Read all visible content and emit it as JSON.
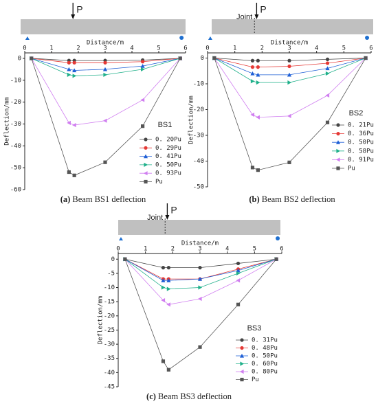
{
  "chart_data": [
    {
      "type": "line",
      "label": "(a)",
      "title": "Beam BS1 deflection",
      "load_label": "P",
      "xlabel": "Distance/m",
      "ylabel": "Deflection/mm",
      "legend_title": "BS1",
      "x": [
        0.25,
        1.65,
        1.85,
        3.0,
        4.4,
        5.8
      ],
      "xlim": [
        0,
        6
      ],
      "xticks": [
        0,
        1,
        2,
        3,
        4,
        5,
        6
      ],
      "ylim": [
        -60,
        2.5
      ],
      "yticks": [
        0,
        -10,
        -20,
        -30,
        -40,
        -50,
        -60
      ],
      "series": [
        {
          "name": "0. 20Pu",
          "color": "#444444",
          "marker": "circle",
          "values": [
            0,
            -1,
            -1,
            -1,
            -0.8,
            0
          ]
        },
        {
          "name": "0. 29Pu",
          "color": "#e53935",
          "marker": "circle",
          "values": [
            0,
            -2,
            -2,
            -2,
            -1.5,
            0
          ]
        },
        {
          "name": "0. 41Pu",
          "color": "#1e5fd6",
          "marker": "triangle",
          "values": [
            0,
            -5,
            -5.5,
            -5,
            -3.5,
            0
          ]
        },
        {
          "name": "0. 50Pu",
          "color": "#1fb08a",
          "marker": "triangle-right",
          "values": [
            0,
            -7.5,
            -8,
            -7.5,
            -5,
            0
          ]
        },
        {
          "name": "0. 93Pu",
          "color": "#d07ef0",
          "marker": "triangle-left",
          "values": [
            0,
            -29.5,
            -30.5,
            -28.5,
            -19,
            0
          ]
        },
        {
          "name": "Pu",
          "color": "#555555",
          "marker": "square",
          "values": [
            0,
            -52,
            -53.5,
            -47.5,
            -31,
            0
          ]
        }
      ]
    },
    {
      "type": "line",
      "label": "(b)",
      "title": "Beam BS2 deflection",
      "load_label": "P",
      "joint_label": "Joint",
      "xlabel": "Distance/m",
      "ylabel": "Deflection/mm",
      "legend_title": "BS2",
      "x": [
        0.25,
        1.65,
        1.85,
        3.0,
        4.4,
        5.8
      ],
      "xlim": [
        0,
        6
      ],
      "xticks": [
        0,
        1,
        2,
        3,
        4,
        5,
        6
      ],
      "ylim": [
        -50,
        2
      ],
      "yticks": [
        0,
        -10,
        -20,
        -30,
        -40,
        -50
      ],
      "series": [
        {
          "name": "0. 21Pu",
          "color": "#444444",
          "marker": "circle",
          "values": [
            0,
            -1,
            -1,
            -1,
            -0.5,
            0
          ]
        },
        {
          "name": "0. 36Pu",
          "color": "#e53935",
          "marker": "circle",
          "values": [
            0,
            -3.5,
            -3.5,
            -3.2,
            -2,
            0
          ]
        },
        {
          "name": "0. 50Pu",
          "color": "#1e5fd6",
          "marker": "triangle",
          "values": [
            0,
            -6,
            -6.5,
            -6.5,
            -4,
            0
          ]
        },
        {
          "name": "0. 58Pu",
          "color": "#1fb08a",
          "marker": "triangle-right",
          "values": [
            0,
            -9,
            -9.5,
            -9.5,
            -6,
            0
          ]
        },
        {
          "name": "0. 91Pu",
          "color": "#d07ef0",
          "marker": "triangle-left",
          "values": [
            0,
            -22,
            -23,
            -22.5,
            -14.5,
            0
          ]
        },
        {
          "name": "Pu",
          "color": "#555555",
          "marker": "square",
          "values": [
            0,
            -42.5,
            -43.5,
            -40.5,
            -25,
            0
          ]
        }
      ]
    },
    {
      "type": "line",
      "label": "(c)",
      "title": "Beam BS3 deflection",
      "load_label": "P",
      "joint_label": "Joint",
      "xlabel": "Distance/m",
      "ylabel": "Deflection/mm",
      "legend_title": "BS3",
      "x": [
        0.25,
        1.65,
        1.85,
        3.0,
        4.4,
        5.8
      ],
      "xlim": [
        0,
        6
      ],
      "xticks": [
        0,
        1,
        2,
        3,
        4,
        5,
        6
      ],
      "ylim": [
        -45,
        2
      ],
      "yticks": [
        0,
        -5,
        -10,
        -15,
        -20,
        -25,
        -30,
        -35,
        -40,
        -45
      ],
      "series": [
        {
          "name": "0. 31Pu",
          "color": "#444444",
          "marker": "circle",
          "values": [
            0,
            -3,
            -3,
            -3,
            -1.5,
            0
          ]
        },
        {
          "name": "0. 48Pu",
          "color": "#e53935",
          "marker": "circle",
          "values": [
            0,
            -7,
            -7,
            -7,
            -3.5,
            0
          ]
        },
        {
          "name": "0. 50Pu",
          "color": "#1e5fd6",
          "marker": "triangle",
          "values": [
            0,
            -7.5,
            -7.5,
            -7,
            -4,
            0
          ]
        },
        {
          "name": "0. 60Pu",
          "color": "#1fb08a",
          "marker": "triangle-right",
          "values": [
            0,
            -10,
            -10.5,
            -10,
            -5,
            0
          ]
        },
        {
          "name": "0. 80Pu",
          "color": "#d07ef0",
          "marker": "triangle-left",
          "values": [
            0,
            -14.5,
            -16,
            -14,
            -7.5,
            0
          ]
        },
        {
          "name": "Pu",
          "color": "#555555",
          "marker": "square",
          "values": [
            0,
            -36,
            -39,
            -31,
            -16,
            0
          ]
        }
      ]
    }
  ]
}
